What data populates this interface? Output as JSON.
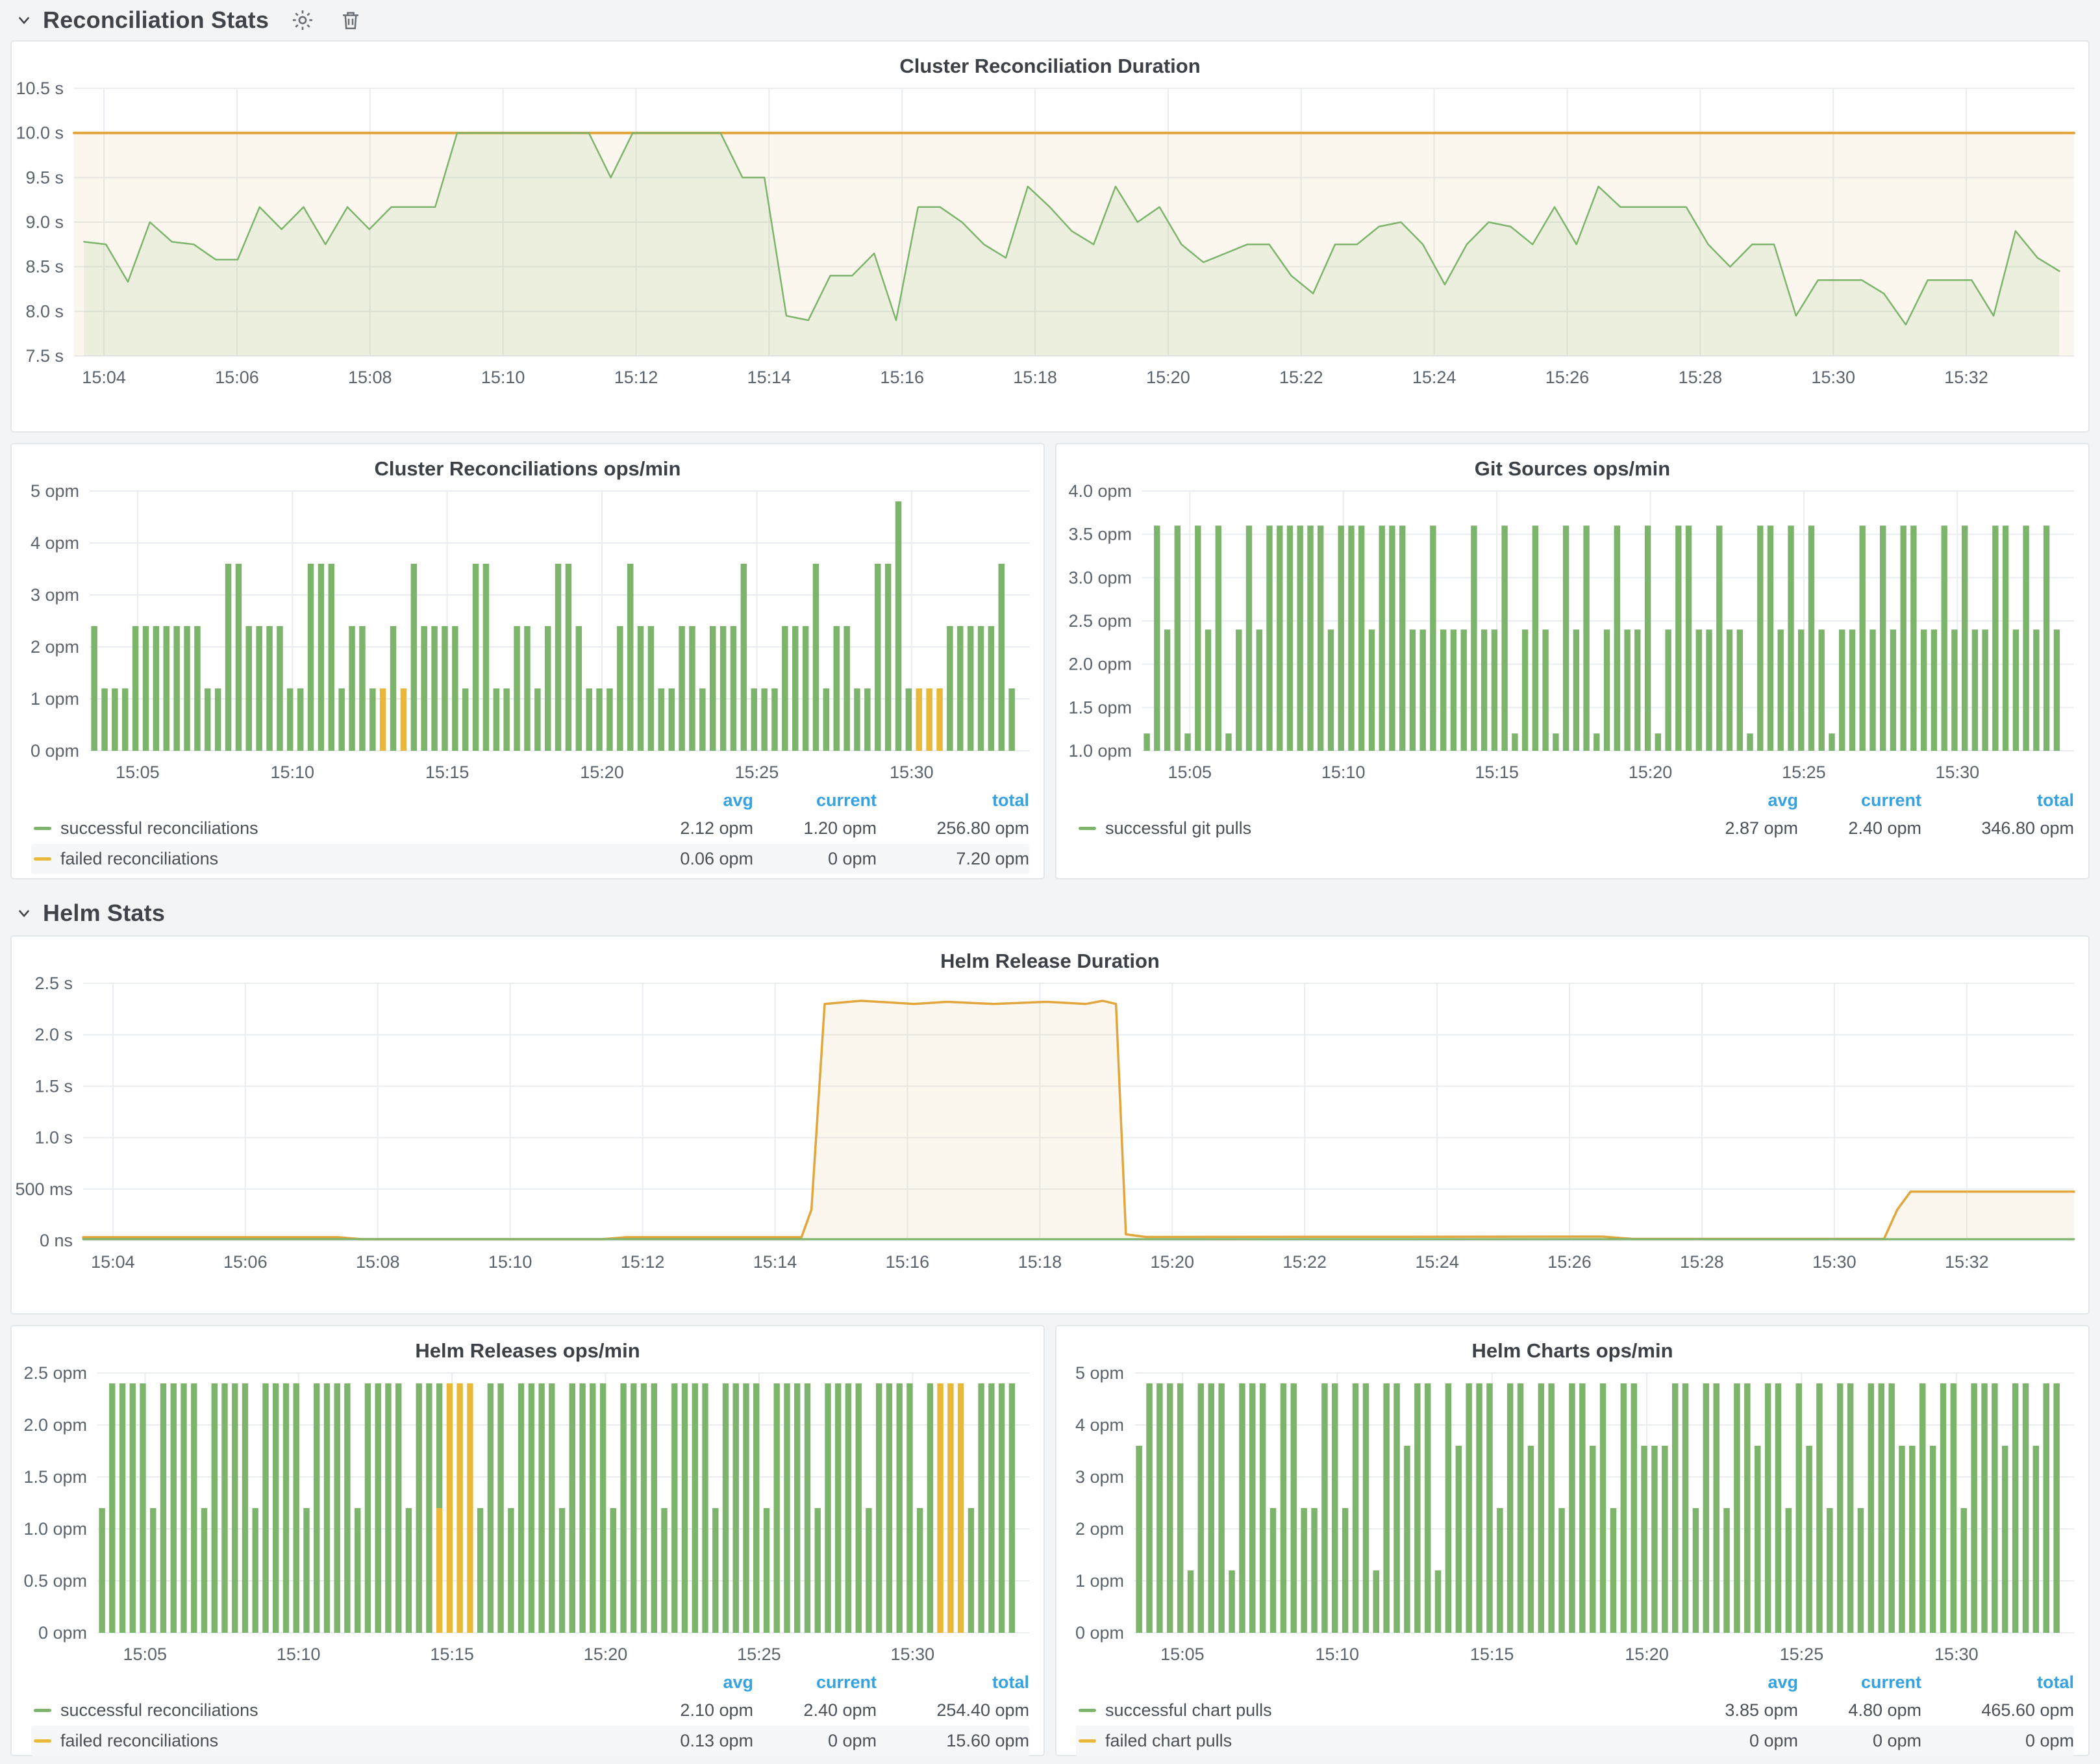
{
  "colors": {
    "green": "#7DB46C",
    "yellow": "#EAB839",
    "threshold": "#E2A63D",
    "legend_header_blue": "#36A2E2",
    "page_bg": "#F2F4F5"
  },
  "sections": {
    "reconciliation": {
      "title": "Reconciliation Stats"
    },
    "helm": {
      "title": "Helm Stats"
    }
  },
  "legend_columns": {
    "avg": "avg",
    "current": "current",
    "total": "total"
  },
  "panels": {
    "cluster_duration": {
      "title": "Cluster Reconciliation Duration"
    },
    "cluster_ops": {
      "title": "Cluster Reconciliations ops/min",
      "legend": [
        {
          "label": "successful reconciliations",
          "color": "green",
          "avg": "2.12 opm",
          "current": "1.20 opm",
          "total": "256.80 opm",
          "highlight": false
        },
        {
          "label": "failed reconciliations",
          "color": "yellow",
          "avg": "0.06 opm",
          "current": "0 opm",
          "total": "7.20 opm",
          "highlight": true
        }
      ]
    },
    "git_sources": {
      "title": "Git Sources ops/min",
      "legend": [
        {
          "label": "successful git pulls",
          "color": "green",
          "avg": "2.87 opm",
          "current": "2.40 opm",
          "total": "346.80 opm",
          "highlight": false
        }
      ]
    },
    "helm_duration": {
      "title": "Helm Release Duration"
    },
    "helm_releases": {
      "title": "Helm Releases ops/min",
      "legend": [
        {
          "label": "successful reconciliations",
          "color": "green",
          "avg": "2.10 opm",
          "current": "2.40 opm",
          "total": "254.40 opm",
          "highlight": false
        },
        {
          "label": "failed reconciliations",
          "color": "yellow",
          "avg": "0.13 opm",
          "current": "0 opm",
          "total": "15.60 opm",
          "highlight": true
        }
      ]
    },
    "helm_charts": {
      "title": "Helm Charts ops/min",
      "legend": [
        {
          "label": "successful chart pulls",
          "color": "green",
          "avg": "3.85 opm",
          "current": "4.80 opm",
          "total": "465.60 opm",
          "highlight": false
        },
        {
          "label": "failed chart pulls",
          "color": "yellow",
          "avg": "0 opm",
          "current": "0 opm",
          "total": "0 opm",
          "highlight": true
        }
      ]
    }
  },
  "chart_data": [
    {
      "id": "cluster_duration",
      "type": "line",
      "title": "Cluster Reconciliation Duration",
      "pad_left": 96,
      "x_range": [
        3.55,
        33.62
      ],
      "x_ticks": [
        [
          4,
          "15:04"
        ],
        [
          6,
          "15:06"
        ],
        [
          8,
          "15:08"
        ],
        [
          10,
          "15:10"
        ],
        [
          12,
          "15:12"
        ],
        [
          14,
          "15:14"
        ],
        [
          16,
          "15:16"
        ],
        [
          18,
          "15:18"
        ],
        [
          20,
          "15:20"
        ],
        [
          22,
          "15:22"
        ],
        [
          24,
          "15:24"
        ],
        [
          26,
          "15:26"
        ],
        [
          28,
          "15:28"
        ],
        [
          30,
          "15:30"
        ],
        [
          32,
          "15:32"
        ]
      ],
      "y_range": [
        7.5,
        10.5
      ],
      "y_ticks": [
        [
          7.5,
          "7.5 s"
        ],
        [
          8,
          "8.0 s"
        ],
        [
          8.5,
          "8.5 s"
        ],
        [
          9,
          "9.0 s"
        ],
        [
          9.5,
          "9.5 s"
        ],
        [
          10,
          "10.0 s"
        ],
        [
          10.5,
          "10.5 s"
        ]
      ],
      "series": [
        {
          "name": "threshold",
          "color": "#E2A63D",
          "width": 4,
          "fill_opacity": 0.09,
          "points": [
            [
              3.55,
              10
            ],
            [
              33.62,
              10
            ]
          ]
        },
        {
          "name": "reconciliation duration",
          "color": "#7DB46C",
          "width": 2.5,
          "fill_opacity": 0.12,
          "start": 3.7,
          "step": 0.33,
          "values": [
            8.78,
            8.75,
            8.33,
            9.0,
            8.78,
            8.75,
            8.58,
            8.58,
            9.17,
            8.92,
            9.17,
            8.75,
            9.17,
            8.92,
            9.17,
            9.17,
            9.17,
            10,
            10,
            10,
            10,
            10,
            10,
            10,
            9.5,
            10,
            10,
            10,
            10,
            10,
            9.5,
            9.5,
            7.95,
            7.9,
            8.4,
            8.4,
            8.65,
            7.9,
            9.17,
            9.17,
            9.0,
            8.75,
            8.6,
            9.4,
            9.17,
            8.9,
            8.75,
            9.4,
            9.0,
            9.17,
            8.75,
            8.55,
            8.65,
            8.75,
            8.75,
            8.4,
            8.2,
            8.75,
            8.75,
            8.95,
            9.0,
            8.75,
            8.3,
            8.75,
            9.0,
            8.95,
            8.75,
            9.17,
            8.75,
            9.4,
            9.17,
            9.17,
            9.17,
            9.17,
            8.75,
            8.5,
            8.75,
            8.75,
            7.95,
            8.35,
            8.35,
            8.35,
            8.2,
            7.85,
            8.35,
            8.35,
            8.35,
            7.95,
            8.9,
            8.6,
            8.45
          ]
        }
      ]
    },
    {
      "id": "cluster_ops",
      "type": "bars",
      "title": "Cluster Reconciliations ops/min",
      "pad_left": 120,
      "x_range": [
        3.45,
        33.8
      ],
      "x_ticks": [
        [
          5,
          "15:05"
        ],
        [
          10,
          "15:10"
        ],
        [
          15,
          "15:15"
        ],
        [
          20,
          "15:20"
        ],
        [
          25,
          "15:25"
        ],
        [
          30,
          "15:30"
        ]
      ],
      "y_range": [
        0,
        5
      ],
      "baseline": 0,
      "y_ticks": [
        [
          0,
          "0 opm"
        ],
        [
          1,
          "1 opm"
        ],
        [
          2,
          "2 opm"
        ],
        [
          3,
          "3 opm"
        ],
        [
          4,
          "4 opm"
        ],
        [
          5,
          "5 opm"
        ]
      ],
      "color_ok": "#7DB46C",
      "color_fail": "#EAB839",
      "start": 3.6,
      "step": 0.333,
      "values": [
        2.4,
        1.2,
        1.2,
        1.2,
        2.4,
        2.4,
        2.4,
        2.4,
        2.4,
        2.4,
        2.4,
        1.2,
        1.2,
        3.6,
        3.6,
        2.4,
        2.4,
        2.4,
        2.4,
        1.2,
        1.2,
        3.6,
        3.6,
        3.6,
        1.2,
        2.4,
        2.4,
        1.2,
        1.2,
        2.4,
        1.2,
        3.6,
        2.4,
        2.4,
        2.4,
        2.4,
        1.2,
        3.6,
        3.6,
        1.2,
        1.2,
        2.4,
        2.4,
        1.2,
        2.4,
        3.6,
        3.6,
        2.4,
        1.2,
        1.2,
        1.2,
        2.4,
        3.6,
        2.4,
        2.4,
        1.2,
        1.2,
        2.4,
        2.4,
        1.2,
        2.4,
        2.4,
        2.4,
        3.6,
        1.2,
        1.2,
        1.2,
        2.4,
        2.4,
        2.4,
        3.6,
        1.2,
        2.4,
        2.4,
        1.2,
        1.2,
        3.6,
        3.6,
        4.8,
        1.2,
        1.2,
        1.2,
        1.2,
        2.4,
        2.4,
        2.4,
        2.4,
        2.4,
        3.6,
        1.2
      ],
      "failed": {
        "28": 1.2,
        "30": 1.2,
        "80": 1.2,
        "81": 1.2,
        "82": 1.2
      }
    },
    {
      "id": "git_sources",
      "type": "bars",
      "title": "Git Sources ops/min",
      "pad_left": 132,
      "x_range": [
        3.45,
        33.8
      ],
      "x_ticks": [
        [
          5,
          "15:05"
        ],
        [
          10,
          "15:10"
        ],
        [
          15,
          "15:15"
        ],
        [
          20,
          "15:20"
        ],
        [
          25,
          "15:25"
        ],
        [
          30,
          "15:30"
        ]
      ],
      "y_range": [
        1.0,
        4.0
      ],
      "baseline": 1.0,
      "y_ticks": [
        [
          1,
          "1.0 opm"
        ],
        [
          1.5,
          "1.5 opm"
        ],
        [
          2,
          "2.0 opm"
        ],
        [
          2.5,
          "2.5 opm"
        ],
        [
          3,
          "3.0 opm"
        ],
        [
          3.5,
          "3.5 opm"
        ],
        [
          4,
          "4.0 opm"
        ]
      ],
      "color_ok": "#7DB46C",
      "color_fail": "#EAB839",
      "start": 3.6,
      "step": 0.333,
      "values": [
        1.2,
        3.6,
        2.4,
        3.6,
        1.2,
        3.6,
        2.4,
        3.6,
        1.2,
        2.4,
        3.6,
        2.4,
        3.6,
        3.6,
        3.6,
        3.6,
        3.6,
        3.6,
        2.4,
        3.6,
        3.6,
        3.6,
        2.4,
        3.6,
        3.6,
        3.6,
        2.4,
        2.4,
        3.6,
        2.4,
        2.4,
        2.4,
        3.6,
        2.4,
        2.4,
        3.6,
        1.2,
        2.4,
        3.6,
        2.4,
        1.2,
        3.6,
        2.4,
        3.6,
        1.2,
        2.4,
        3.6,
        2.4,
        2.4,
        3.6,
        1.2,
        2.4,
        3.6,
        3.6,
        2.4,
        2.4,
        3.6,
        2.4,
        2.4,
        1.2,
        3.6,
        3.6,
        2.4,
        3.6,
        2.4,
        3.6,
        2.4,
        1.2,
        2.4,
        2.4,
        3.6,
        2.4,
        3.6,
        2.4,
        3.6,
        3.6,
        2.4,
        2.4,
        3.6,
        2.4,
        3.6,
        2.4,
        2.4,
        3.6,
        3.6,
        2.4,
        3.6,
        2.4,
        3.6,
        2.4
      ],
      "failed": {}
    },
    {
      "id": "helm_duration",
      "type": "line",
      "title": "Helm Release Duration",
      "pad_left": 110,
      "x_range": [
        3.55,
        33.62
      ],
      "x_ticks": [
        [
          4,
          "15:04"
        ],
        [
          6,
          "15:06"
        ],
        [
          8,
          "15:08"
        ],
        [
          10,
          "15:10"
        ],
        [
          12,
          "15:12"
        ],
        [
          14,
          "15:14"
        ],
        [
          16,
          "15:16"
        ],
        [
          18,
          "15:18"
        ],
        [
          20,
          "15:20"
        ],
        [
          22,
          "15:22"
        ],
        [
          24,
          "15:24"
        ],
        [
          26,
          "15:26"
        ],
        [
          28,
          "15:28"
        ],
        [
          30,
          "15:30"
        ],
        [
          32,
          "15:32"
        ]
      ],
      "y_range": [
        0,
        2.5
      ],
      "y_ticks": [
        [
          0,
          "0 ns"
        ],
        [
          0.5,
          "500 ms"
        ],
        [
          1,
          "1.0 s"
        ],
        [
          1.5,
          "1.5 s"
        ],
        [
          2,
          "2.0 s"
        ],
        [
          2.5,
          "2.5 s"
        ]
      ],
      "series": [
        {
          "name": "failed release duration",
          "color": "#E2A63D",
          "width": 3.5,
          "fill_opacity": 0.09,
          "points": [
            [
              3.55,
              0.032
            ],
            [
              7.4,
              0.032
            ],
            [
              7.75,
              0.013
            ],
            [
              11.4,
              0.013
            ],
            [
              11.75,
              0.032
            ],
            [
              14.4,
              0.032
            ],
            [
              14.55,
              0.3
            ],
            [
              14.75,
              2.3
            ],
            [
              15.3,
              2.33
            ],
            [
              16.1,
              2.3
            ],
            [
              16.6,
              2.32
            ],
            [
              17.3,
              2.3
            ],
            [
              18.1,
              2.32
            ],
            [
              18.7,
              2.3
            ],
            [
              18.95,
              2.33
            ],
            [
              19.15,
              2.3
            ],
            [
              19.3,
              0.06
            ],
            [
              19.6,
              0.035
            ],
            [
              26.5,
              0.038
            ],
            [
              26.95,
              0.016
            ],
            [
              30.75,
              0.016
            ],
            [
              30.95,
              0.3
            ],
            [
              31.15,
              0.475
            ],
            [
              33.62,
              0.475
            ]
          ]
        },
        {
          "name": "successful release duration",
          "color": "#7DB46C",
          "width": 3,
          "fill_opacity": 0.1,
          "points": [
            [
              3.55,
              0.013
            ],
            [
              33.62,
              0.013
            ]
          ]
        }
      ]
    },
    {
      "id": "helm_releases",
      "type": "bars",
      "title": "Helm Releases ops/min",
      "pad_left": 132,
      "x_range": [
        3.45,
        33.8
      ],
      "x_ticks": [
        [
          5,
          "15:05"
        ],
        [
          10,
          "15:10"
        ],
        [
          15,
          "15:15"
        ],
        [
          20,
          "15:20"
        ],
        [
          25,
          "15:25"
        ],
        [
          30,
          "15:30"
        ]
      ],
      "y_range": [
        0,
        2.5
      ],
      "baseline": 0,
      "y_ticks": [
        [
          0,
          "0 opm"
        ],
        [
          0.5,
          "0.5 opm"
        ],
        [
          1,
          "1.0 opm"
        ],
        [
          1.5,
          "1.5 opm"
        ],
        [
          2,
          "2.0 opm"
        ],
        [
          2.5,
          "2.5 opm"
        ]
      ],
      "color_ok": "#7DB46C",
      "color_fail": "#EAB839",
      "start": 3.6,
      "step": 0.333,
      "values": [
        1.2,
        2.4,
        2.4,
        2.4,
        2.4,
        1.2,
        2.4,
        2.4,
        2.4,
        2.4,
        1.2,
        2.4,
        2.4,
        2.4,
        2.4,
        1.2,
        2.4,
        2.4,
        2.4,
        2.4,
        1.2,
        2.4,
        2.4,
        2.4,
        2.4,
        1.2,
        2.4,
        2.4,
        2.4,
        2.4,
        1.2,
        2.4,
        2.4,
        2.4,
        2.4,
        2.4,
        2.4,
        1.2,
        2.4,
        2.4,
        1.2,
        2.4,
        2.4,
        2.4,
        2.4,
        1.2,
        2.4,
        2.4,
        2.4,
        2.4,
        1.2,
        2.4,
        2.4,
        2.4,
        2.4,
        1.2,
        2.4,
        2.4,
        2.4,
        2.4,
        1.2,
        2.4,
        2.4,
        2.4,
        2.4,
        1.2,
        2.4,
        2.4,
        2.4,
        2.4,
        1.2,
        2.4,
        2.4,
        2.4,
        2.4,
        1.2,
        2.4,
        2.4,
        2.4,
        2.4,
        1.2,
        2.4,
        2.4,
        2.4,
        2.4,
        1.2,
        2.4,
        2.4,
        2.4,
        2.4
      ],
      "failed": {
        "33": 1.2,
        "34": 2.4,
        "35": 2.4,
        "36": 2.4,
        "82": 2.4,
        "83": 2.4,
        "84": 2.4
      }
    },
    {
      "id": "helm_charts",
      "type": "bars",
      "title": "Helm Charts ops/min",
      "pad_left": 120,
      "x_range": [
        3.45,
        33.8
      ],
      "x_ticks": [
        [
          5,
          "15:05"
        ],
        [
          10,
          "15:10"
        ],
        [
          15,
          "15:15"
        ],
        [
          20,
          "15:20"
        ],
        [
          25,
          "15:25"
        ],
        [
          30,
          "15:30"
        ]
      ],
      "y_range": [
        0,
        5
      ],
      "baseline": 0,
      "y_ticks": [
        [
          0,
          "0 opm"
        ],
        [
          1,
          "1 opm"
        ],
        [
          2,
          "2 opm"
        ],
        [
          3,
          "3 opm"
        ],
        [
          4,
          "4 opm"
        ],
        [
          5,
          "5 opm"
        ]
      ],
      "color_ok": "#7DB46C",
      "color_fail": "#EAB839",
      "start": 3.6,
      "step": 0.333,
      "values": [
        3.6,
        4.8,
        4.8,
        4.8,
        4.8,
        1.2,
        4.8,
        4.8,
        4.8,
        1.2,
        4.8,
        4.8,
        4.8,
        2.4,
        4.8,
        4.8,
        2.4,
        2.4,
        4.8,
        4.8,
        2.4,
        4.8,
        4.8,
        1.2,
        4.8,
        4.8,
        3.6,
        4.8,
        4.8,
        1.2,
        4.8,
        3.6,
        4.8,
        4.8,
        4.8,
        2.4,
        4.8,
        4.8,
        3.6,
        4.8,
        4.8,
        2.4,
        4.8,
        4.8,
        3.6,
        4.8,
        2.4,
        4.8,
        4.8,
        3.6,
        3.6,
        3.6,
        4.8,
        4.8,
        2.4,
        4.8,
        4.8,
        2.4,
        4.8,
        4.8,
        3.6,
        4.8,
        4.8,
        2.4,
        4.8,
        3.6,
        4.8,
        2.4,
        4.8,
        4.8,
        2.4,
        4.8,
        4.8,
        4.8,
        3.6,
        3.6,
        4.8,
        3.6,
        4.8,
        4.8,
        2.4,
        4.8,
        4.8,
        4.8,
        3.6,
        4.8,
        4.8,
        3.6,
        4.8,
        4.8
      ],
      "failed": {}
    }
  ]
}
